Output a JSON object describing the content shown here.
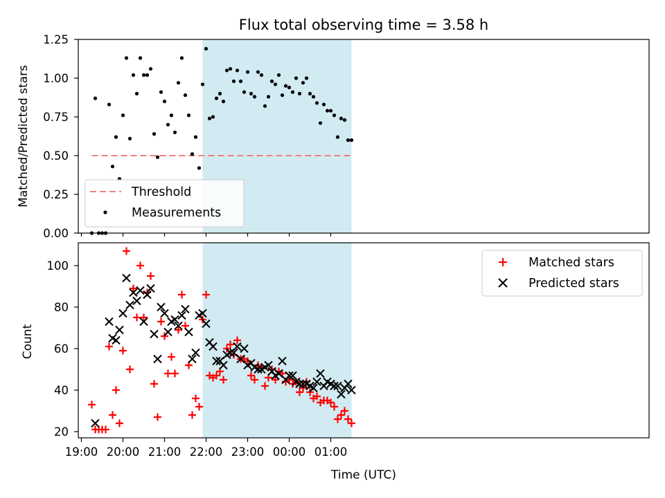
{
  "figure": {
    "title": "Flux total observing time = 3.58 h",
    "xlabel": "Time (UTC)"
  },
  "colors": {
    "shade": "#add8e6",
    "threshold": "#f08080",
    "matched": "#ff0000",
    "predicted": "#000000",
    "points": "#000000"
  },
  "chart_data": [
    {
      "type": "scatter",
      "ylabel": "Matched/Predicted stars",
      "ylim": [
        0,
        1.25
      ],
      "yticks": [
        "0.00",
        "0.25",
        "0.50",
        "0.75",
        "1.00",
        "1.25"
      ],
      "shaded_x_range": [
        "21:55",
        "01:30"
      ],
      "threshold": {
        "name": "Threshold",
        "value": 0.5,
        "x_range": [
          "19:15",
          "01:30"
        ]
      },
      "legend": {
        "placement": "lower-left",
        "entries": [
          "Threshold",
          "Measurements"
        ]
      },
      "series": [
        {
          "name": "Measurements",
          "points": [
            [
              "19:15",
              0.0
            ],
            [
              "19:20",
              0.87
            ],
            [
              "19:25",
              0.0
            ],
            [
              "19:30",
              0.0
            ],
            [
              "19:35",
              0.0
            ],
            [
              "19:40",
              0.83
            ],
            [
              "19:45",
              0.43
            ],
            [
              "19:50",
              0.62
            ],
            [
              "19:55",
              0.35
            ],
            [
              "20:00",
              0.76
            ],
            [
              "20:05",
              1.13
            ],
            [
              "20:10",
              0.61
            ],
            [
              "20:15",
              1.02
            ],
            [
              "20:20",
              0.9
            ],
            [
              "20:25",
              1.13
            ],
            [
              "20:30",
              1.02
            ],
            [
              "20:35",
              1.02
            ],
            [
              "20:40",
              1.06
            ],
            [
              "20:45",
              0.64
            ],
            [
              "20:50",
              0.49
            ],
            [
              "20:55",
              0.91
            ],
            [
              "21:00",
              0.85
            ],
            [
              "21:05",
              0.7
            ],
            [
              "21:10",
              0.76
            ],
            [
              "21:15",
              0.65
            ],
            [
              "21:20",
              0.97
            ],
            [
              "21:25",
              1.13
            ],
            [
              "21:30",
              0.89
            ],
            [
              "21:35",
              0.76
            ],
            [
              "21:40",
              0.51
            ],
            [
              "21:45",
              0.62
            ],
            [
              "21:50",
              0.42
            ],
            [
              "21:55",
              0.96
            ],
            [
              "22:00",
              1.19
            ],
            [
              "22:05",
              0.74
            ],
            [
              "22:10",
              0.75
            ],
            [
              "22:15",
              0.87
            ],
            [
              "22:20",
              0.9
            ],
            [
              "22:25",
              0.85
            ],
            [
              "22:30",
              1.05
            ],
            [
              "22:35",
              1.06
            ],
            [
              "22:40",
              0.98
            ],
            [
              "22:45",
              1.05
            ],
            [
              "22:50",
              0.98
            ],
            [
              "22:55",
              0.91
            ],
            [
              "23:00",
              1.04
            ],
            [
              "23:05",
              0.9
            ],
            [
              "23:10",
              0.88
            ],
            [
              "23:15",
              1.04
            ],
            [
              "23:20",
              1.02
            ],
            [
              "23:25",
              0.82
            ],
            [
              "23:30",
              0.88
            ],
            [
              "23:35",
              0.98
            ],
            [
              "23:40",
              0.96
            ],
            [
              "23:45",
              1.02
            ],
            [
              "23:50",
              0.89
            ],
            [
              "23:55",
              0.95
            ],
            [
              "00:00",
              0.94
            ],
            [
              "00:05",
              0.91
            ],
            [
              "00:10",
              1.0
            ],
            [
              "00:15",
              0.9
            ],
            [
              "00:20",
              0.97
            ],
            [
              "00:25",
              1.0
            ],
            [
              "00:30",
              0.9
            ],
            [
              "00:35",
              0.88
            ],
            [
              "00:40",
              0.84
            ],
            [
              "00:45",
              0.71
            ],
            [
              "00:50",
              0.83
            ],
            [
              "00:55",
              0.79
            ],
            [
              "01:00",
              0.79
            ],
            [
              "01:05",
              0.76
            ],
            [
              "01:10",
              0.62
            ],
            [
              "01:15",
              0.74
            ],
            [
              "01:20",
              0.73
            ],
            [
              "01:25",
              0.6
            ],
            [
              "01:30",
              0.6
            ]
          ]
        }
      ]
    },
    {
      "type": "scatter",
      "ylabel": "Count",
      "ylim": [
        17,
        111
      ],
      "yticks": [
        "20",
        "40",
        "60",
        "80",
        "100"
      ],
      "xticks": [
        "19:00",
        "20:00",
        "21:00",
        "22:00",
        "23:00",
        "00:00",
        "01:00"
      ],
      "shaded_x_range": [
        "21:55",
        "01:30"
      ],
      "legend": {
        "placement": "top-right",
        "entries": [
          "Matched stars",
          "Predicted stars"
        ]
      },
      "series": [
        {
          "name": "Matched stars",
          "marker": "+",
          "points": [
            [
              "19:15",
              33
            ],
            [
              "19:20",
              21
            ],
            [
              "19:25",
              21
            ],
            [
              "19:30",
              21
            ],
            [
              "19:35",
              21
            ],
            [
              "19:40",
              61
            ],
            [
              "19:45",
              28
            ],
            [
              "19:50",
              40
            ],
            [
              "19:55",
              24
            ],
            [
              "20:00",
              59
            ],
            [
              "20:05",
              107
            ],
            [
              "20:10",
              50
            ],
            [
              "20:15",
              89
            ],
            [
              "20:20",
              75
            ],
            [
              "20:25",
              100
            ],
            [
              "20:30",
              75
            ],
            [
              "20:35",
              87
            ],
            [
              "20:40",
              95
            ],
            [
              "20:45",
              43
            ],
            [
              "20:50",
              27
            ],
            [
              "20:55",
              73
            ],
            [
              "21:00",
              66
            ],
            [
              "21:05",
              48
            ],
            [
              "21:10",
              56
            ],
            [
              "21:15",
              48
            ],
            [
              "21:20",
              69
            ],
            [
              "21:25",
              86
            ],
            [
              "21:30",
              71
            ],
            [
              "21:35",
              52
            ],
            [
              "21:40",
              28
            ],
            [
              "21:45",
              36
            ],
            [
              "21:50",
              32
            ],
            [
              "21:55",
              74
            ],
            [
              "22:00",
              86
            ],
            [
              "22:05",
              47
            ],
            [
              "22:10",
              46
            ],
            [
              "22:15",
              47
            ],
            [
              "22:20",
              49
            ],
            [
              "22:25",
              45
            ],
            [
              "22:30",
              60
            ],
            [
              "22:35",
              62
            ],
            [
              "22:40",
              57
            ],
            [
              "22:45",
              64
            ],
            [
              "22:50",
              55
            ],
            [
              "22:55",
              55
            ],
            [
              "23:00",
              54
            ],
            [
              "23:05",
              47
            ],
            [
              "23:10",
              45
            ],
            [
              "23:15",
              52
            ],
            [
              "23:20",
              51
            ],
            [
              "23:25",
              42
            ],
            [
              "23:30",
              46
            ],
            [
              "23:35",
              50
            ],
            [
              "23:40",
              45
            ],
            [
              "23:45",
              49
            ],
            [
              "23:50",
              48
            ],
            [
              "23:55",
              44
            ],
            [
              "00:00",
              45
            ],
            [
              "00:05",
              43
            ],
            [
              "00:10",
              44
            ],
            [
              "00:15",
              39
            ],
            [
              "00:20",
              41
            ],
            [
              "00:25",
              44
            ],
            [
              "00:30",
              39
            ],
            [
              "00:35",
              36
            ],
            [
              "00:40",
              37
            ],
            [
              "00:45",
              34
            ],
            [
              "00:50",
              35
            ],
            [
              "00:55",
              35
            ],
            [
              "01:00",
              34
            ],
            [
              "01:05",
              32
            ],
            [
              "01:10",
              26
            ],
            [
              "01:15",
              28
            ],
            [
              "01:20",
              30
            ],
            [
              "01:25",
              26
            ],
            [
              "01:30",
              24
            ]
          ]
        },
        {
          "name": "Predicted stars",
          "marker": "x",
          "points": [
            [
              "19:20",
              24
            ],
            [
              "19:40",
              73
            ],
            [
              "19:45",
              65
            ],
            [
              "19:50",
              64
            ],
            [
              "19:55",
              69
            ],
            [
              "20:00",
              77
            ],
            [
              "20:05",
              94
            ],
            [
              "20:10",
              81
            ],
            [
              "20:15",
              87
            ],
            [
              "20:20",
              83
            ],
            [
              "20:25",
              88
            ],
            [
              "20:30",
              73
            ],
            [
              "20:35",
              86
            ],
            [
              "20:40",
              89
            ],
            [
              "20:45",
              67
            ],
            [
              "20:50",
              55
            ],
            [
              "20:55",
              80
            ],
            [
              "21:00",
              77
            ],
            [
              "21:05",
              68
            ],
            [
              "21:10",
              73
            ],
            [
              "21:15",
              74
            ],
            [
              "21:20",
              71
            ],
            [
              "21:25",
              76
            ],
            [
              "21:30",
              79
            ],
            [
              "21:35",
              68
            ],
            [
              "21:40",
              55
            ],
            [
              "21:45",
              58
            ],
            [
              "21:50",
              76
            ],
            [
              "21:55",
              77
            ],
            [
              "22:00",
              72
            ],
            [
              "22:05",
              63
            ],
            [
              "22:10",
              61
            ],
            [
              "22:15",
              54
            ],
            [
              "22:20",
              54
            ],
            [
              "22:25",
              52
            ],
            [
              "22:30",
              57
            ],
            [
              "22:35",
              58
            ],
            [
              "22:40",
              58
            ],
            [
              "22:45",
              61
            ],
            [
              "22:50",
              55
            ],
            [
              "22:55",
              60
            ],
            [
              "23:00",
              52
            ],
            [
              "23:05",
              53
            ],
            [
              "23:10",
              51
            ],
            [
              "23:15",
              50
            ],
            [
              "23:20",
              50
            ],
            [
              "23:25",
              51
            ],
            [
              "23:30",
              52
            ],
            [
              "23:35",
              49
            ],
            [
              "23:40",
              47
            ],
            [
              "23:45",
              48
            ],
            [
              "23:50",
              54
            ],
            [
              "23:55",
              45
            ],
            [
              "00:00",
              47
            ],
            [
              "00:05",
              47
            ],
            [
              "00:10",
              44
            ],
            [
              "00:15",
              43
            ],
            [
              "00:20",
              43
            ],
            [
              "00:25",
              43
            ],
            [
              "00:30",
              42
            ],
            [
              "00:35",
              41
            ],
            [
              "00:40",
              44
            ],
            [
              "00:45",
              48
            ],
            [
              "00:50",
              42
            ],
            [
              "00:55",
              44
            ],
            [
              "01:00",
              43
            ],
            [
              "01:05",
              42
            ],
            [
              "01:10",
              42
            ],
            [
              "01:15",
              38
            ],
            [
              "01:20",
              41
            ],
            [
              "01:25",
              43
            ],
            [
              "01:30",
              40
            ]
          ]
        }
      ]
    }
  ]
}
